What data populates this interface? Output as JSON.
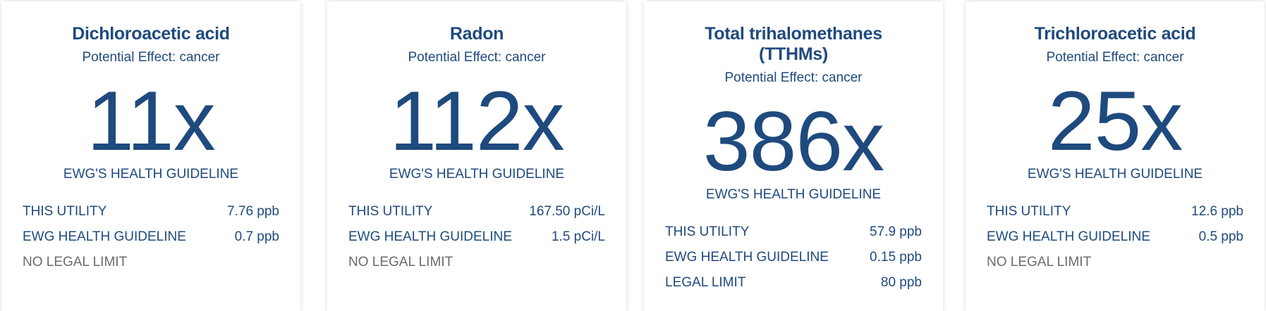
{
  "colors": {
    "accent": "#1f4a7d",
    "muted": "#6b6b6b"
  },
  "cards": [
    {
      "title": "Dichloroacetic acid",
      "effect": "Potential Effect: cancer",
      "multiple": "11x",
      "multiple_label": "EWG'S HEALTH GUIDELINE",
      "rows": [
        {
          "label": "THIS UTILITY",
          "value": "7.76 ppb"
        },
        {
          "label": "EWG HEALTH GUIDELINE",
          "value": "0.7 ppb"
        }
      ],
      "legal": "NO LEGAL LIMIT",
      "legal_value": ""
    },
    {
      "title": "Radon",
      "effect": "Potential Effect: cancer",
      "multiple": "112x",
      "multiple_label": "EWG'S HEALTH GUIDELINE",
      "rows": [
        {
          "label": "THIS UTILITY",
          "value": "167.50 pCi/L"
        },
        {
          "label": "EWG HEALTH GUIDELINE",
          "value": "1.5 pCi/L"
        }
      ],
      "legal": "NO LEGAL LIMIT",
      "legal_value": ""
    },
    {
      "title": "Total trihalomethanes (TTHMs)",
      "effect": "Potential Effect: cancer",
      "multiple": "386x",
      "multiple_label": "EWG'S HEALTH GUIDELINE",
      "rows": [
        {
          "label": "THIS UTILITY",
          "value": "57.9 ppb"
        },
        {
          "label": "EWG HEALTH GUIDELINE",
          "value": "0.15 ppb"
        }
      ],
      "legal": "LEGAL LIMIT",
      "legal_value": "80 ppb"
    },
    {
      "title": "Trichloroacetic acid",
      "effect": "Potential Effect: cancer",
      "multiple": "25x",
      "multiple_label": "EWG'S HEALTH GUIDELINE",
      "rows": [
        {
          "label": "THIS UTILITY",
          "value": "12.6 ppb"
        },
        {
          "label": "EWG HEALTH GUIDELINE",
          "value": "0.5 ppb"
        }
      ],
      "legal": "NO LEGAL LIMIT",
      "legal_value": ""
    }
  ]
}
